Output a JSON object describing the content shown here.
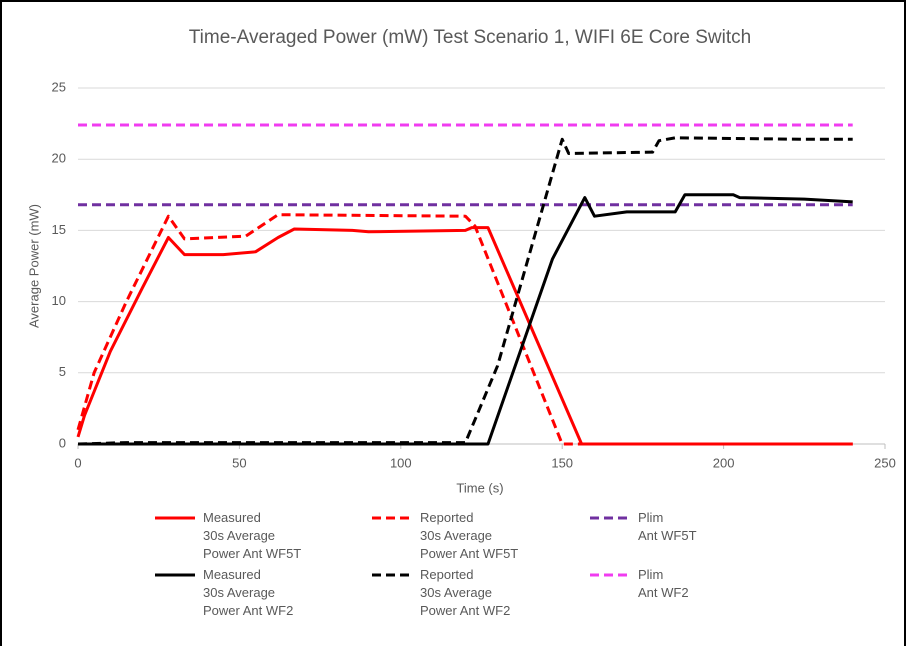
{
  "chart_data": {
    "type": "line",
    "title": "Time-Averaged Power (mW) Test Scenario 1, WIFI 6E Core Switch",
    "xlabel": "Time (s)",
    "ylabel": "Average Power (mW)",
    "xlim": [
      0,
      250
    ],
    "xticks": [
      0,
      50,
      100,
      150,
      200,
      250
    ],
    "ylim": [
      0,
      25
    ],
    "yticks": [
      0,
      5,
      10,
      15,
      20,
      25
    ],
    "grid": true,
    "legend": "bottom",
    "series": [
      {
        "name": "Measured\n30s Average\nPower Ant WF5T",
        "color": "#ff0000",
        "dashed": false,
        "x": [
          0,
          2,
          10,
          20,
          28,
          33,
          45,
          55,
          62,
          67,
          85,
          90,
          120,
          122,
          127,
          156,
          240
        ],
        "values": [
          0.5,
          2,
          6.5,
          11,
          14.5,
          13.3,
          13.3,
          13.5,
          14.5,
          15.1,
          15,
          14.9,
          15,
          15.2,
          15.2,
          0,
          0
        ]
      },
      {
        "name": "Reported\n30s Average\nPower Ant WF5T",
        "color": "#ff0000",
        "dashed": true,
        "x": [
          0,
          5,
          15,
          28,
          33,
          52,
          62,
          120,
          123,
          150,
          240
        ],
        "values": [
          1,
          5,
          10,
          16,
          14.4,
          14.6,
          16.1,
          16,
          15.3,
          0,
          0
        ]
      },
      {
        "name": "Plim\nAnt WF5T",
        "color": "#7030a0",
        "dashed": true,
        "x": [
          0,
          240
        ],
        "values": [
          16.8,
          16.8
        ]
      },
      {
        "name": "Measured\n30s Average\nPower Ant WF2",
        "color": "#000000",
        "dashed": false,
        "x": [
          0,
          127,
          147,
          157,
          160,
          170,
          185,
          188,
          203,
          205,
          225,
          240
        ],
        "values": [
          0,
          0,
          13,
          17.3,
          16,
          16.3,
          16.3,
          17.5,
          17.5,
          17.3,
          17.2,
          17
        ]
      },
      {
        "name": "Reported\n30s Average\nPower Ant WF2",
        "color": "#000000",
        "dashed": true,
        "x": [
          0,
          15,
          120,
          130,
          150,
          152,
          178,
          180,
          185,
          225,
          240
        ],
        "values": [
          0,
          0.1,
          0.1,
          5.5,
          21.4,
          20.4,
          20.5,
          21.3,
          21.5,
          21.4,
          21.4
        ]
      },
      {
        "name": "Plim\nAnt WF2",
        "color": "#f03cf0",
        "dashed": true,
        "x": [
          0,
          240
        ],
        "values": [
          22.4,
          22.4
        ]
      }
    ]
  }
}
